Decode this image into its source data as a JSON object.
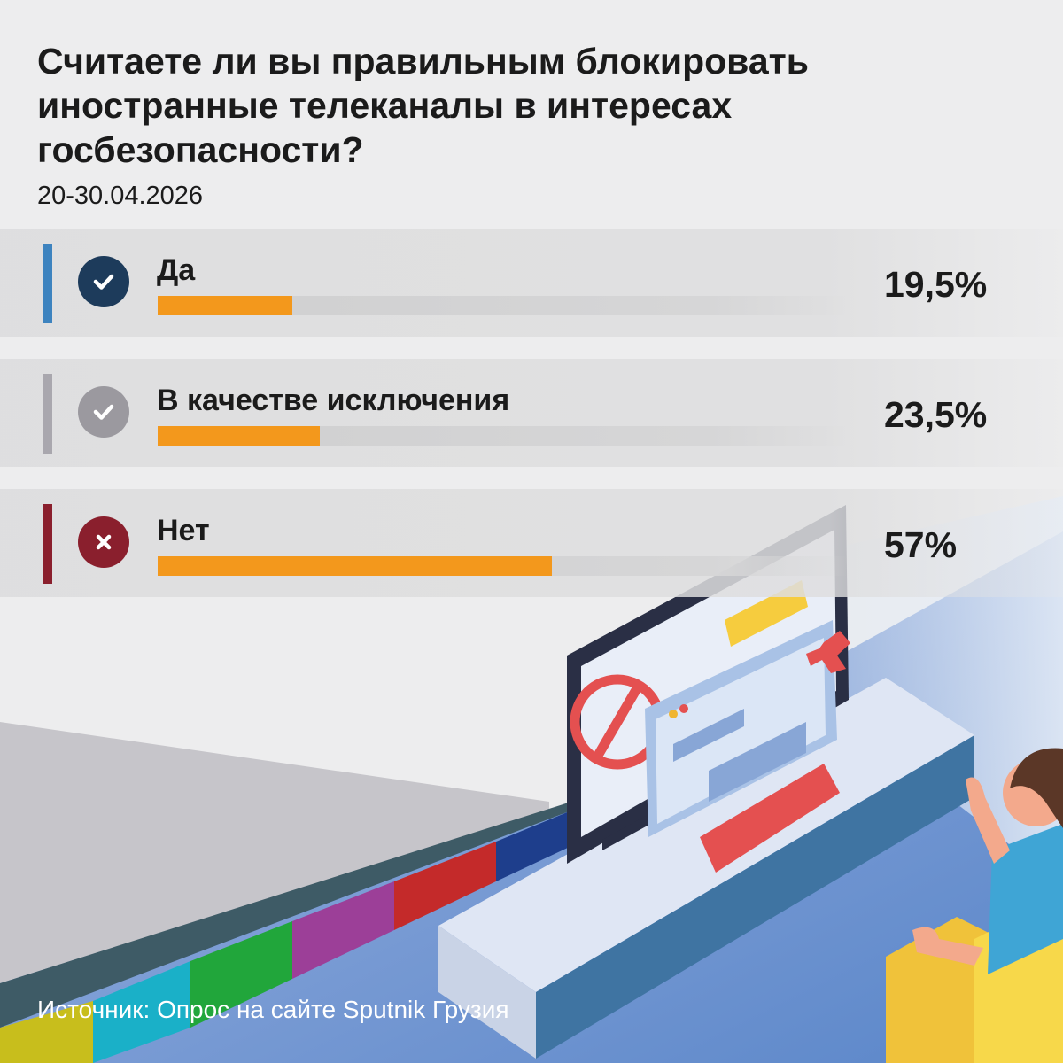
{
  "title_lines": [
    "Считаете ли вы правильным блокировать",
    "иностранные телеканалы в интересах",
    "госбезопасности?"
  ],
  "date": "20-30.04.2026",
  "source": "Источник: Опрос на сайте Sputnik Грузия",
  "colors": {
    "bar_fill": "#f3981c",
    "accent_yes": "#3d83bf",
    "accent_exception": "#a9a7ae",
    "accent_no": "#8a1f2d",
    "icon_yes": "#1d3b5b",
    "icon_exception": "#9b999f",
    "icon_no": "#8a1f2d"
  },
  "chart_data": {
    "type": "bar",
    "orientation": "horizontal",
    "title": "Считаете ли вы правильным блокировать иностранные телеканалы в интересах госбезопасности?",
    "categories": [
      "Да",
      "В качестве исключения",
      "Нет"
    ],
    "values": [
      19.5,
      23.5,
      57
    ],
    "value_labels": [
      "19,5%",
      "23,5%",
      "57%"
    ],
    "icons": [
      "check-icon",
      "check-icon",
      "cross-icon"
    ],
    "xlim": [
      0,
      100
    ],
    "unit": "%"
  }
}
